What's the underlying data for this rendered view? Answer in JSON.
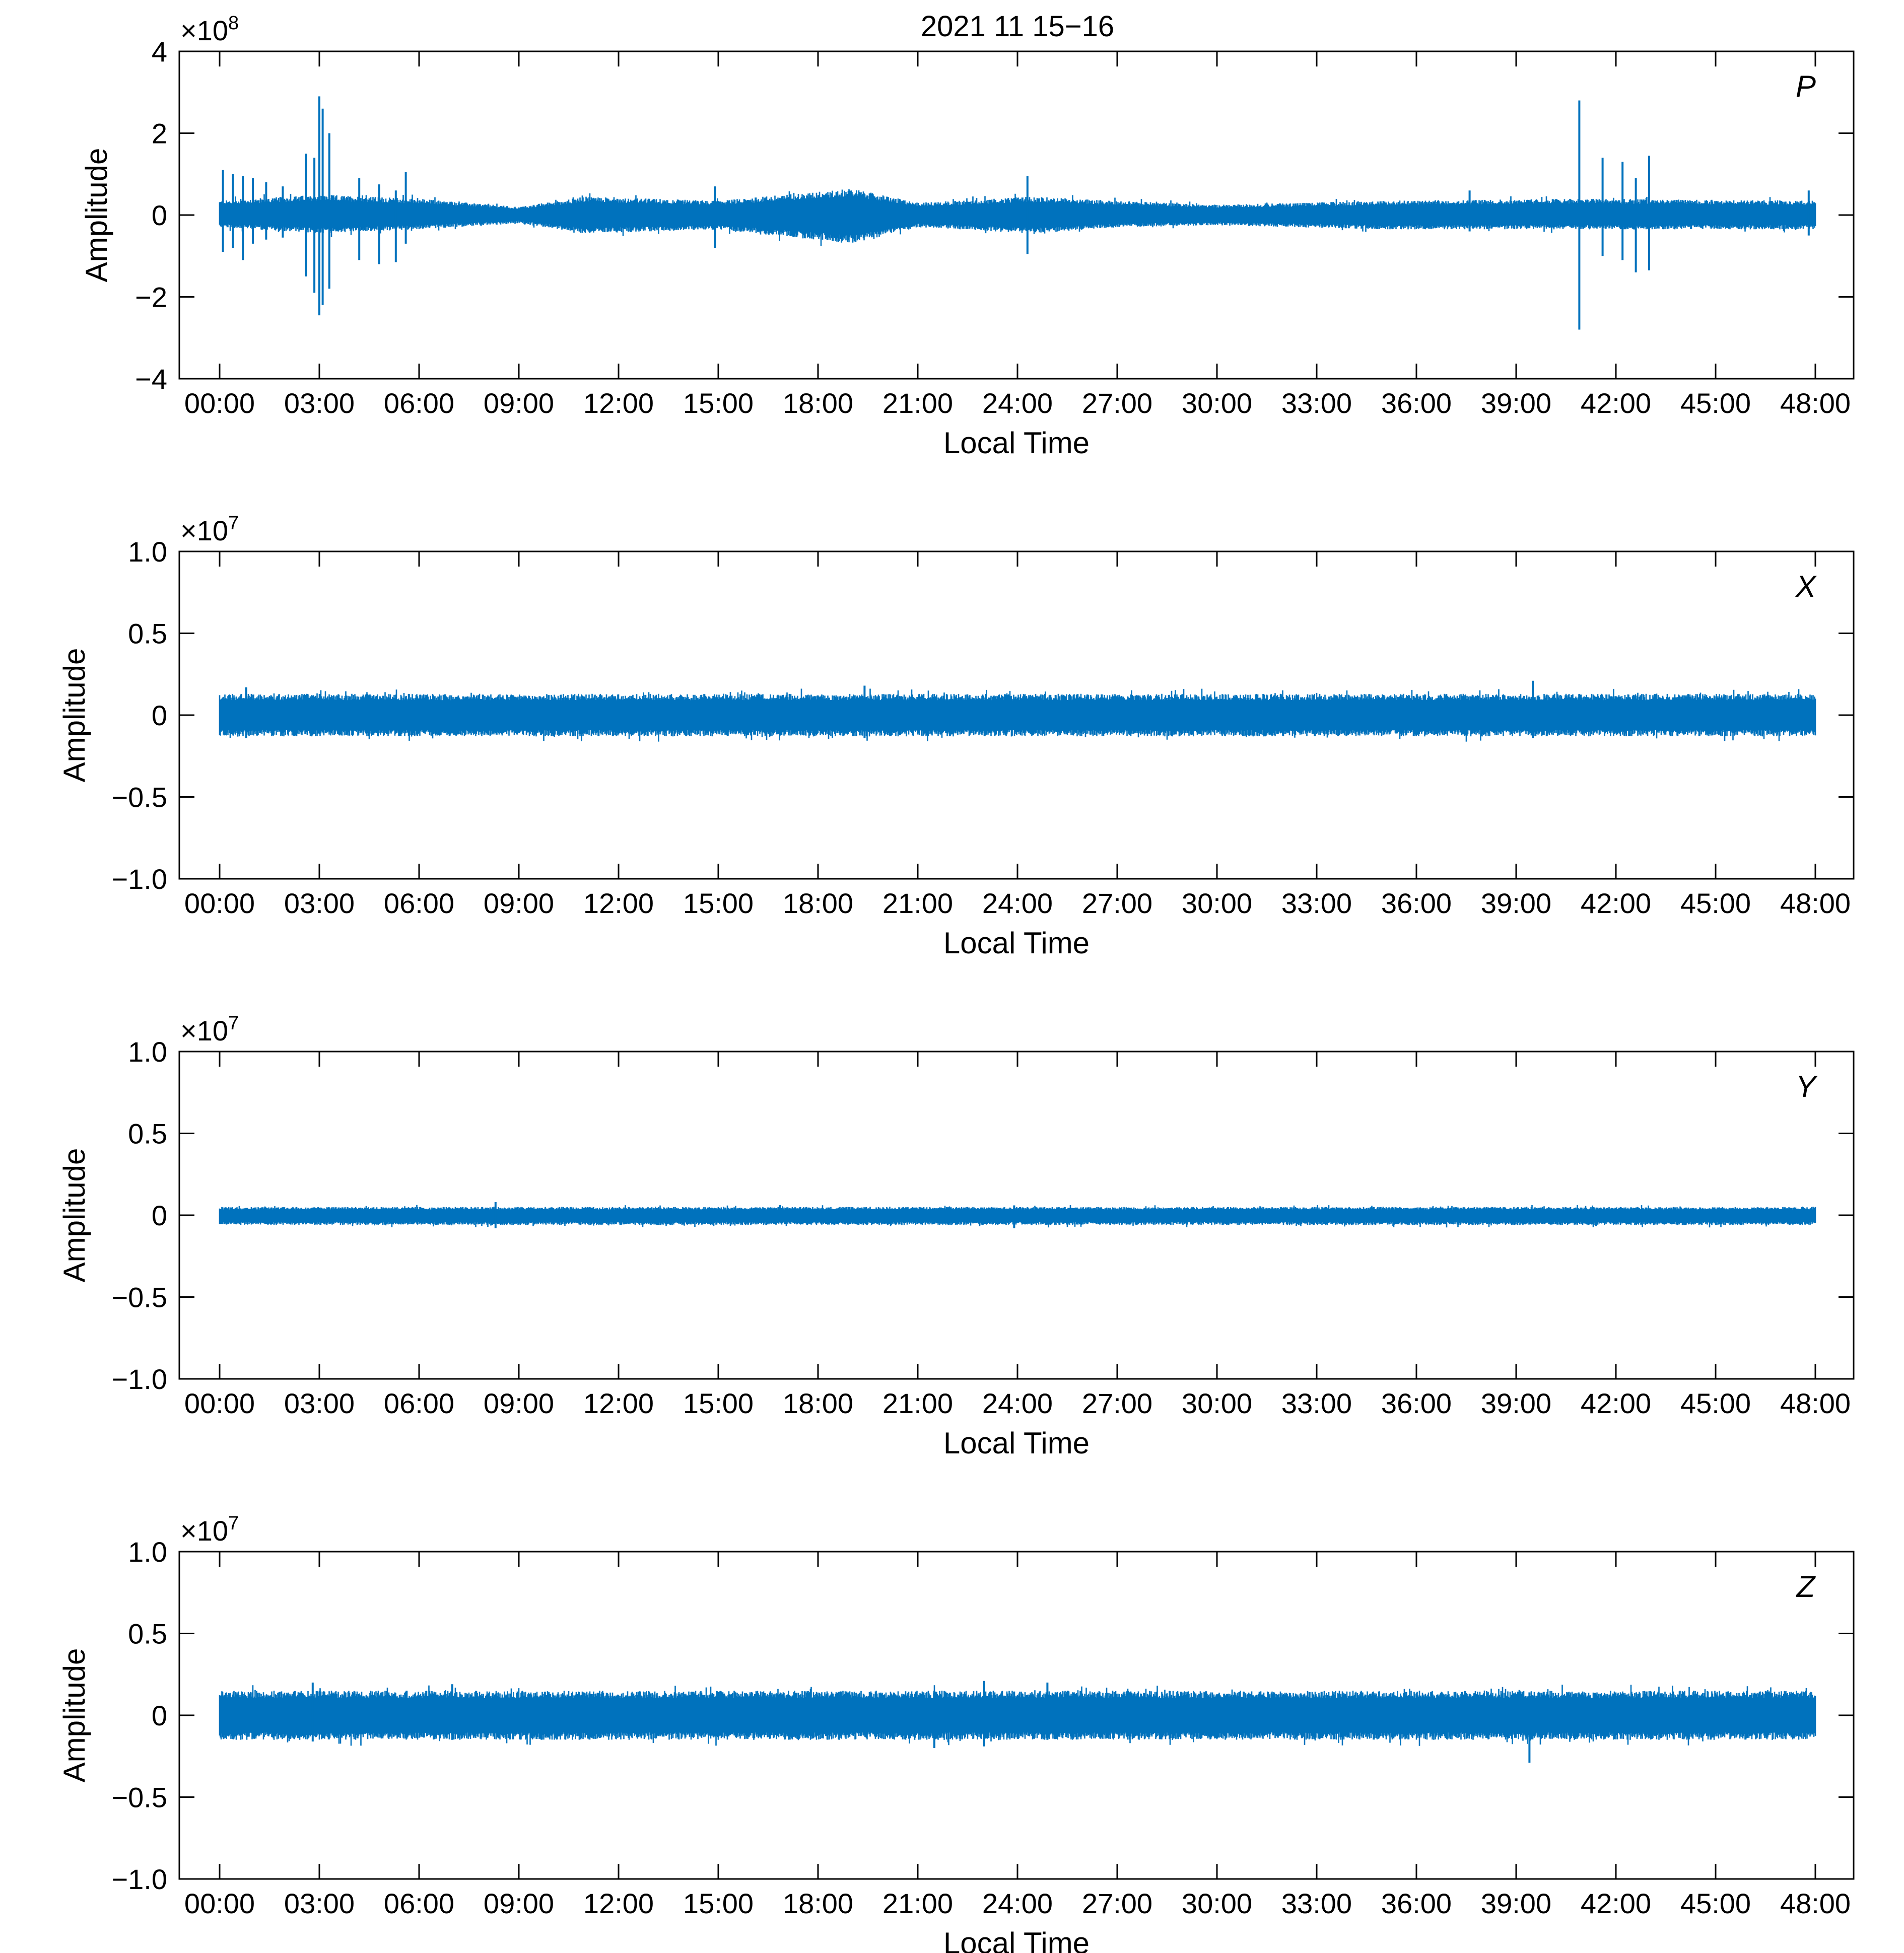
{
  "title": "2021 11 15−16",
  "colors": {
    "trace": "#0072bd",
    "axis": "#000000",
    "background": "#ffffff"
  },
  "chart_data": [
    {
      "type": "line",
      "panel_label": "P",
      "exponent_base": "×10",
      "exponent": "8",
      "xlabel": "Local Time",
      "ylabel": "Amplitude",
      "xlim": [
        0,
        48
      ],
      "ylim": [
        -4,
        4
      ],
      "x_ticks": [
        "00:00",
        "03:00",
        "06:00",
        "09:00",
        "12:00",
        "15:00",
        "18:00",
        "21:00",
        "24:00",
        "27:00",
        "30:00",
        "33:00",
        "36:00",
        "39:00",
        "42:00",
        "45:00",
        "48:00"
      ],
      "y_ticks": [
        {
          "value": -4,
          "label": "−4"
        },
        {
          "value": -2,
          "label": "−2"
        },
        {
          "value": 0,
          "label": "0"
        },
        {
          "value": 2,
          "label": "2"
        },
        {
          "value": 4,
          "label": "4"
        }
      ],
      "noise_envelope": [
        {
          "x": 0,
          "upper": 0.35,
          "lower": -0.3
        },
        {
          "x": 3,
          "upper": 0.5,
          "lower": -0.45
        },
        {
          "x": 6,
          "upper": 0.4,
          "lower": -0.35
        },
        {
          "x": 9,
          "upper": 0.2,
          "lower": -0.2
        },
        {
          "x": 11,
          "upper": 0.45,
          "lower": -0.45
        },
        {
          "x": 15,
          "upper": 0.35,
          "lower": -0.35
        },
        {
          "x": 19,
          "upper": 0.65,
          "lower": -0.7
        },
        {
          "x": 21,
          "upper": 0.3,
          "lower": -0.3
        },
        {
          "x": 24.5,
          "upper": 0.45,
          "lower": -0.45
        },
        {
          "x": 27,
          "upper": 0.35,
          "lower": -0.3
        },
        {
          "x": 30,
          "upper": 0.25,
          "lower": -0.25
        },
        {
          "x": 35,
          "upper": 0.35,
          "lower": -0.35
        },
        {
          "x": 41,
          "upper": 0.4,
          "lower": -0.35
        },
        {
          "x": 48,
          "upper": 0.35,
          "lower": -0.35
        }
      ],
      "spikes": [
        {
          "x": 0.1,
          "max": 1.1,
          "min": -0.9
        },
        {
          "x": 0.4,
          "max": 1.0,
          "min": -0.8
        },
        {
          "x": 0.7,
          "max": 0.95,
          "min": -1.1
        },
        {
          "x": 1.0,
          "max": 0.9,
          "min": -0.7
        },
        {
          "x": 1.4,
          "max": 0.8,
          "min": -0.6
        },
        {
          "x": 1.9,
          "max": 0.7,
          "min": -0.55
        },
        {
          "x": 2.6,
          "max": 1.5,
          "min": -1.5
        },
        {
          "x": 2.85,
          "max": 1.4,
          "min": -1.9
        },
        {
          "x": 3.0,
          "max": 2.9,
          "min": -2.45
        },
        {
          "x": 3.1,
          "max": 2.6,
          "min": -2.2
        },
        {
          "x": 3.3,
          "max": 2.0,
          "min": -1.8
        },
        {
          "x": 4.2,
          "max": 0.9,
          "min": -1.1
        },
        {
          "x": 4.8,
          "max": 0.75,
          "min": -1.2
        },
        {
          "x": 5.3,
          "max": 0.6,
          "min": -1.15
        },
        {
          "x": 5.6,
          "max": 1.05,
          "min": -0.7
        },
        {
          "x": 14.9,
          "max": 0.7,
          "min": -0.8
        },
        {
          "x": 24.3,
          "max": 0.95,
          "min": -0.95
        },
        {
          "x": 37.6,
          "max": 0.6,
          "min": -0.4
        },
        {
          "x": 40.9,
          "max": 2.8,
          "min": -2.8
        },
        {
          "x": 41.6,
          "max": 1.4,
          "min": -1.0
        },
        {
          "x": 42.2,
          "max": 1.3,
          "min": -1.1
        },
        {
          "x": 42.6,
          "max": 0.9,
          "min": -1.4
        },
        {
          "x": 43.0,
          "max": 1.45,
          "min": -1.35
        },
        {
          "x": 47.8,
          "max": 0.6,
          "min": -0.5
        }
      ]
    },
    {
      "type": "line",
      "panel_label": "X",
      "exponent_base": "×10",
      "exponent": "7",
      "xlabel": "Local Time",
      "ylabel": "Amplitude",
      "xlim": [
        0,
        48
      ],
      "ylim": [
        -1,
        1
      ],
      "x_ticks": [
        "00:00",
        "03:00",
        "06:00",
        "09:00",
        "12:00",
        "15:00",
        "18:00",
        "21:00",
        "24:00",
        "27:00",
        "30:00",
        "33:00",
        "36:00",
        "39:00",
        "42:00",
        "45:00",
        "48:00"
      ],
      "y_ticks": [
        {
          "value": -1,
          "label": "−1.0"
        },
        {
          "value": -0.5,
          "label": "−0.5"
        },
        {
          "value": 0,
          "label": "0"
        },
        {
          "value": 0.5,
          "label": "0.5"
        },
        {
          "value": 1,
          "label": "1.0"
        }
      ],
      "noise_envelope": [
        {
          "x": 0,
          "upper": 0.13,
          "lower": -0.13
        },
        {
          "x": 48,
          "upper": 0.13,
          "lower": -0.13
        }
      ],
      "spikes": [
        {
          "x": 0.8,
          "max": 0.17,
          "min": -0.14
        },
        {
          "x": 19.4,
          "max": 0.18,
          "min": -0.14
        },
        {
          "x": 39.5,
          "max": 0.21,
          "min": -0.14
        }
      ]
    },
    {
      "type": "line",
      "panel_label": "Y",
      "exponent_base": "×10",
      "exponent": "7",
      "xlabel": "Local Time",
      "ylabel": "Amplitude",
      "xlim": [
        0,
        48
      ],
      "ylim": [
        -1,
        1
      ],
      "x_ticks": [
        "00:00",
        "03:00",
        "06:00",
        "09:00",
        "12:00",
        "15:00",
        "18:00",
        "21:00",
        "24:00",
        "27:00",
        "30:00",
        "33:00",
        "36:00",
        "39:00",
        "42:00",
        "45:00",
        "48:00"
      ],
      "y_ticks": [
        {
          "value": -1,
          "label": "−1.0"
        },
        {
          "value": -0.5,
          "label": "−0.5"
        },
        {
          "value": 0,
          "label": "0"
        },
        {
          "value": 0.5,
          "label": "0.5"
        },
        {
          "value": 1,
          "label": "1.0"
        }
      ],
      "noise_envelope": [
        {
          "x": 0,
          "upper": 0.05,
          "lower": -0.06
        },
        {
          "x": 48,
          "upper": 0.05,
          "lower": -0.06
        }
      ],
      "spikes": [
        {
          "x": 8.3,
          "max": 0.08,
          "min": -0.08
        },
        {
          "x": 23.9,
          "max": 0.06,
          "min": -0.08
        }
      ]
    },
    {
      "type": "line",
      "panel_label": "Z",
      "exponent_base": "×10",
      "exponent": "7",
      "xlabel": "Local Time",
      "ylabel": "Amplitude",
      "xlim": [
        0,
        48
      ],
      "ylim": [
        -1,
        1
      ],
      "x_ticks": [
        "00:00",
        "03:00",
        "06:00",
        "09:00",
        "12:00",
        "15:00",
        "18:00",
        "21:00",
        "24:00",
        "27:00",
        "30:00",
        "33:00",
        "36:00",
        "39:00",
        "42:00",
        "45:00",
        "48:00"
      ],
      "y_ticks": [
        {
          "value": -1,
          "label": "−1.0"
        },
        {
          "value": -0.5,
          "label": "−0.5"
        },
        {
          "value": 0,
          "label": "0"
        },
        {
          "value": 0.5,
          "label": "0.5"
        },
        {
          "value": 1,
          "label": "1.0"
        }
      ],
      "noise_envelope": [
        {
          "x": 0,
          "upper": 0.15,
          "lower": -0.15
        },
        {
          "x": 48,
          "upper": 0.15,
          "lower": -0.15
        }
      ],
      "spikes": [
        {
          "x": 2.8,
          "max": 0.2,
          "min": -0.16
        },
        {
          "x": 7.0,
          "max": 0.19,
          "min": -0.15
        },
        {
          "x": 21.5,
          "max": 0.15,
          "min": -0.2
        },
        {
          "x": 23.0,
          "max": 0.21,
          "min": -0.19
        },
        {
          "x": 24.9,
          "max": 0.2,
          "min": -0.15
        },
        {
          "x": 39.4,
          "max": 0.14,
          "min": -0.29
        }
      ]
    }
  ]
}
